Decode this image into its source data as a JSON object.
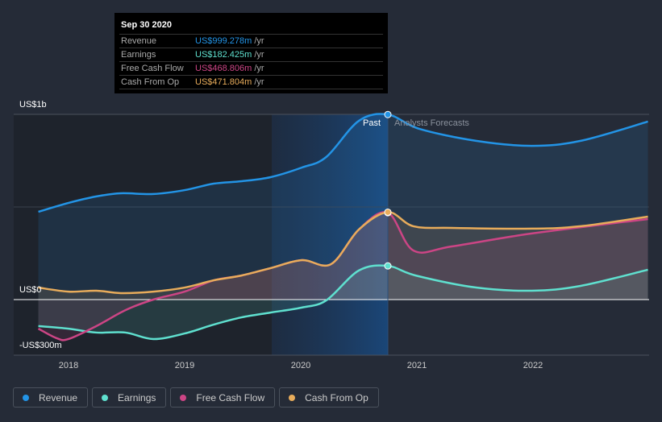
{
  "tooltip": {
    "date": "Sep 30 2020",
    "unit": "/yr",
    "rows": [
      {
        "label": "Revenue",
        "value": "US$999.278m",
        "color": "#2394e6"
      },
      {
        "label": "Earnings",
        "value": "US$182.425m",
        "color": "#5fe0cf"
      },
      {
        "label": "Free Cash Flow",
        "value": "US$468.806m",
        "color": "#cc4585"
      },
      {
        "label": "Cash From Op",
        "value": "US$471.804m",
        "color": "#e8ac5b"
      }
    ]
  },
  "labels": {
    "past": "Past",
    "forecast": "Analysts Forecasts"
  },
  "legend": [
    {
      "label": "Revenue",
      "color": "#2394e6"
    },
    {
      "label": "Earnings",
      "color": "#5fe0cf"
    },
    {
      "label": "Free Cash Flow",
      "color": "#cc4585"
    },
    {
      "label": "Cash From Op",
      "color": "#e8ac5b"
    }
  ],
  "chart_data": {
    "type": "line",
    "ylabel": "USD (millions)",
    "ylim": [
      -300,
      1000
    ],
    "y_tick_labels": [
      {
        "value": 1000,
        "label": "US$1b"
      },
      {
        "value": 0,
        "label": "US$0"
      },
      {
        "value": -300,
        "label": "-US$300m"
      }
    ],
    "x_tick_labels": [
      {
        "value": 2018,
        "label": "2018"
      },
      {
        "value": 2019,
        "label": "2019"
      },
      {
        "value": 2020,
        "label": "2020"
      },
      {
        "value": 2021,
        "label": "2021"
      },
      {
        "value": 2022,
        "label": "2022"
      }
    ],
    "xlim": [
      2017.74,
      2022.99
    ],
    "past_end": 2020.75,
    "highlight_start": 2019.75,
    "series": [
      {
        "name": "Revenue",
        "color": "#2394e6",
        "points": [
          [
            2017.74,
            474
          ],
          [
            2018.0,
            522
          ],
          [
            2018.24,
            557
          ],
          [
            2018.45,
            574
          ],
          [
            2018.73,
            570
          ],
          [
            2019.0,
            591
          ],
          [
            2019.25,
            626
          ],
          [
            2019.49,
            639
          ],
          [
            2019.74,
            661
          ],
          [
            2020.01,
            713
          ],
          [
            2020.22,
            770
          ],
          [
            2020.5,
            965
          ],
          [
            2020.75,
            999
          ],
          [
            2021.02,
            922
          ],
          [
            2021.51,
            857
          ],
          [
            2021.99,
            830
          ],
          [
            2022.41,
            857
          ],
          [
            2022.99,
            961
          ]
        ]
      },
      {
        "name": "Earnings",
        "color": "#5fe0cf",
        "points": [
          [
            2017.74,
            -143
          ],
          [
            2018.0,
            -157
          ],
          [
            2018.24,
            -178
          ],
          [
            2018.49,
            -178
          ],
          [
            2018.73,
            -213
          ],
          [
            2019.0,
            -183
          ],
          [
            2019.25,
            -135
          ],
          [
            2019.49,
            -96
          ],
          [
            2019.74,
            -70
          ],
          [
            2020.01,
            -43
          ],
          [
            2020.22,
            -4
          ],
          [
            2020.5,
            157
          ],
          [
            2020.75,
            182
          ],
          [
            2020.99,
            130
          ],
          [
            2021.51,
            65
          ],
          [
            2021.99,
            48
          ],
          [
            2022.41,
            74
          ],
          [
            2022.99,
            161
          ]
        ]
      },
      {
        "name": "Free Cash Flow",
        "color": "#cc4585",
        "points": [
          [
            2017.74,
            -157
          ],
          [
            2017.9,
            -209
          ],
          [
            2018.0,
            -213
          ],
          [
            2018.24,
            -143
          ],
          [
            2018.49,
            -57
          ],
          [
            2018.73,
            0
          ],
          [
            2019.0,
            43
          ],
          [
            2019.25,
            104
          ],
          [
            2019.49,
            130
          ],
          [
            2019.74,
            170
          ],
          [
            2020.01,
            213
          ],
          [
            2020.26,
            191
          ],
          [
            2020.5,
            378
          ],
          [
            2020.75,
            469
          ],
          [
            2020.97,
            265
          ],
          [
            2021.3,
            287
          ],
          [
            2021.99,
            357
          ],
          [
            2022.99,
            435
          ]
        ]
      },
      {
        "name": "Cash From Op",
        "color": "#e8ac5b",
        "points": [
          [
            2017.74,
            65
          ],
          [
            2018.0,
            43
          ],
          [
            2018.24,
            48
          ],
          [
            2018.45,
            35
          ],
          [
            2018.73,
            43
          ],
          [
            2019.0,
            65
          ],
          [
            2019.25,
            104
          ],
          [
            2019.49,
            130
          ],
          [
            2019.74,
            170
          ],
          [
            2020.01,
            213
          ],
          [
            2020.26,
            191
          ],
          [
            2020.5,
            378
          ],
          [
            2020.75,
            472
          ],
          [
            2020.97,
            396
          ],
          [
            2021.3,
            387
          ],
          [
            2021.99,
            383
          ],
          [
            2022.41,
            396
          ],
          [
            2022.99,
            448
          ]
        ]
      }
    ]
  }
}
